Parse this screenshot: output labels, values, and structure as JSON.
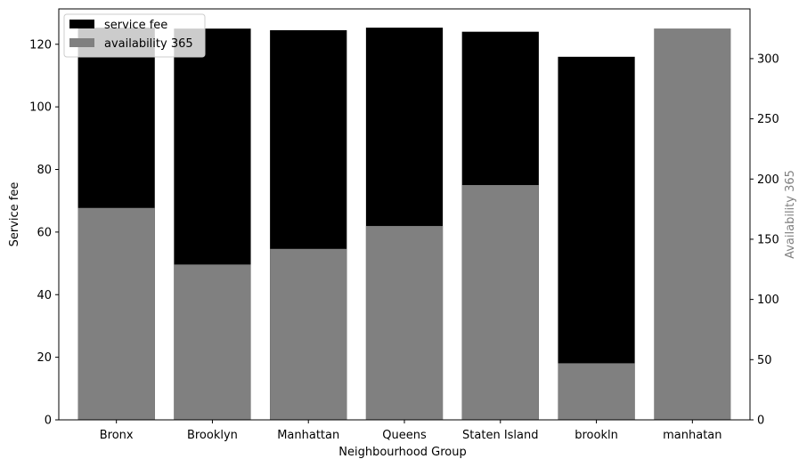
{
  "chart_data": {
    "type": "bar",
    "xlabel": "Neighbourhood Group",
    "categories": [
      "Bronx",
      "Brooklyn",
      "Manhattan",
      "Queens",
      "Staten Island",
      "brookln",
      "manhatan"
    ],
    "series": [
      {
        "name": "service fee",
        "axis": "left",
        "color": "#000000",
        "values": [
          125.3,
          125.0,
          124.5,
          125.3,
          124.0,
          116.0,
          0
        ]
      },
      {
        "name": "availability 365",
        "axis": "right",
        "color": "#808080",
        "values": [
          176,
          129,
          142,
          161,
          195,
          47,
          325
        ]
      }
    ],
    "left_axis": {
      "label": "Service fee",
      "ylim": [
        0,
        131.3
      ],
      "ticks": [
        0,
        20,
        40,
        60,
        80,
        100,
        120
      ]
    },
    "right_axis": {
      "label": "Availability 365",
      "label_color": "#808080",
      "ylim": [
        0,
        341.3
      ],
      "ticks": [
        0,
        50,
        100,
        150,
        200,
        250,
        300
      ]
    },
    "legend_position": "upper-left",
    "grid": false
  }
}
